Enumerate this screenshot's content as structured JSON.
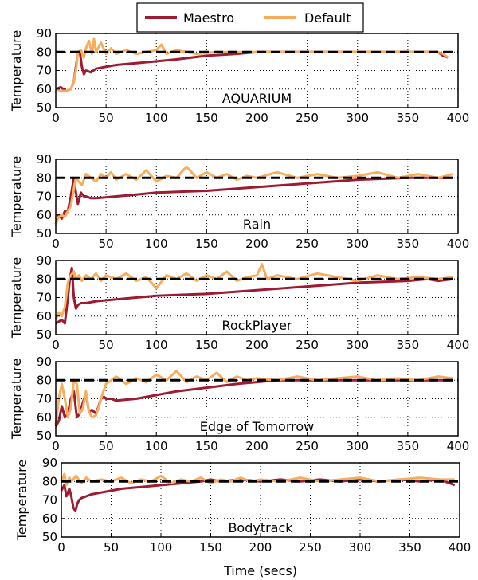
{
  "chart_data": {
    "type": "line",
    "legend": {
      "placement": "top-center",
      "entries": [
        {
          "name": "Maestro",
          "color": "#9e1b32"
        },
        {
          "name": "Default",
          "color": "#f7ad5c"
        }
      ]
    },
    "xlabel": "Time (secs)",
    "ylabel": "Temperature",
    "target_line": {
      "y": 80,
      "color": "#000000",
      "style": "dashed"
    },
    "grid": "dotted",
    "panels": [
      {
        "title": "AQUARIUM",
        "xlim": [
          0,
          400
        ],
        "ylim": [
          50,
          90
        ],
        "xticks": [
          0,
          50,
          100,
          150,
          200,
          250,
          300,
          350,
          400
        ],
        "yticks": [
          50,
          60,
          70,
          80,
          90
        ],
        "series": [
          {
            "name": "Maestro",
            "x": [
              0,
              5,
              10,
              15,
              18,
              20,
              22,
              24,
              26,
              28,
              30,
              35,
              40,
              50,
              60,
              80,
              100,
              120,
              150,
              180,
              200,
              250,
              300,
              350,
              380,
              385,
              390
            ],
            "y": [
              60,
              61,
              59,
              60,
              64,
              72,
              80,
              80,
              72,
              68,
              70,
              69,
              71,
              72,
              73,
              74,
              75,
              76,
              78,
              79,
              80,
              80,
              80,
              80,
              80,
              78,
              77
            ]
          },
          {
            "name": "Default",
            "x": [
              0,
              5,
              10,
              15,
              18,
              20,
              22,
              25,
              28,
              30,
              33,
              36,
              38,
              40,
              42,
              45,
              50,
              55,
              60,
              70,
              80,
              90,
              100,
              105,
              110,
              120,
              140,
              160,
              180,
              200,
              250,
              300,
              350,
              380,
              385,
              390
            ],
            "y": [
              60,
              59,
              59,
              60,
              64,
              70,
              80,
              81,
              77,
              82,
              86,
              79,
              87,
              80,
              82,
              85,
              79,
              82,
              79,
              81,
              79,
              80,
              81,
              84,
              79,
              81,
              79,
              80,
              80,
              80,
              80,
              80,
              80,
              80,
              79,
              77
            ]
          }
        ]
      },
      {
        "title": "Rain",
        "xlim": [
          0,
          400
        ],
        "ylim": [
          50,
          90
        ],
        "xticks": [
          0,
          50,
          100,
          150,
          200,
          250,
          300,
          350,
          400
        ],
        "yticks": [
          50,
          60,
          70,
          80,
          90
        ],
        "series": [
          {
            "name": "Maestro",
            "x": [
              0,
              3,
              6,
              9,
              12,
              15,
              18,
              20,
              22,
              25,
              28,
              30,
              35,
              40,
              60,
              80,
              100,
              150,
              200,
              250,
              300,
              350,
              380,
              395
            ],
            "y": [
              55,
              60,
              58,
              62,
              62,
              70,
              80,
              72,
              66,
              72,
              70,
              70,
              69,
              69,
              70,
              71,
              72,
              73,
              75,
              77,
              79,
              80,
              80,
              80
            ]
          },
          {
            "name": "Default",
            "x": [
              0,
              3,
              6,
              9,
              12,
              15,
              18,
              20,
              23,
              26,
              30,
              35,
              40,
              45,
              50,
              55,
              60,
              70,
              80,
              90,
              100,
              110,
              120,
              130,
              140,
              150,
              160,
              170,
              180,
              190,
              200,
              220,
              240,
              260,
              280,
              300,
              320,
              340,
              360,
              380,
              395
            ],
            "y": [
              55,
              59,
              60,
              59,
              62,
              65,
              74,
              80,
              78,
              76,
              82,
              80,
              78,
              82,
              80,
              83,
              79,
              82,
              79,
              84,
              78,
              81,
              80,
              86,
              80,
              83,
              80,
              82,
              79,
              81,
              80,
              83,
              80,
              82,
              80,
              81,
              83,
              80,
              82,
              80,
              82
            ]
          }
        ]
      },
      {
        "title": "RockPlayer",
        "xlim": [
          0,
          400
        ],
        "ylim": [
          50,
          90
        ],
        "xticks": [
          0,
          50,
          100,
          150,
          200,
          250,
          300,
          350,
          400
        ],
        "yticks": [
          50,
          60,
          70,
          80,
          90
        ],
        "series": [
          {
            "name": "Maestro",
            "x": [
              0,
              3,
              6,
              9,
              12,
              14,
              16,
              18,
              20,
              22,
              25,
              30,
              40,
              60,
              80,
              100,
              150,
              200,
              250,
              300,
              350,
              370,
              380,
              395
            ],
            "y": [
              56,
              57,
              58,
              56,
              70,
              80,
              86,
              70,
              64,
              66,
              67,
              67,
              68,
              69,
              70,
              71,
              72,
              74,
              76,
              78,
              79,
              80,
              79,
              80
            ]
          },
          {
            "name": "Default",
            "x": [
              0,
              3,
              6,
              9,
              12,
              15,
              18,
              20,
              23,
              26,
              30,
              35,
              40,
              45,
              50,
              60,
              70,
              80,
              90,
              100,
              110,
              120,
              130,
              140,
              150,
              160,
              170,
              180,
              190,
              200,
              205,
              210,
              220,
              240,
              260,
              280,
              300,
              320,
              340,
              360,
              380,
              395
            ],
            "y": [
              58,
              62,
              60,
              65,
              78,
              82,
              84,
              80,
              82,
              79,
              82,
              80,
              83,
              79,
              82,
              80,
              83,
              79,
              81,
              75,
              82,
              80,
              83,
              79,
              82,
              80,
              84,
              79,
              81,
              82,
              88,
              80,
              82,
              80,
              83,
              81,
              79,
              82,
              80,
              81,
              80,
              81
            ]
          }
        ]
      },
      {
        "title": "Edge of Tomorrow",
        "xlim": [
          0,
          400
        ],
        "ylim": [
          50,
          90
        ],
        "xticks": [
          0,
          50,
          100,
          150,
          200,
          250,
          300,
          350,
          400
        ],
        "yticks": [
          50,
          60,
          70,
          80,
          90
        ],
        "series": [
          {
            "name": "Maestro",
            "x": [
              0,
              3,
              6,
              9,
              12,
              15,
              18,
              21,
              24,
              27,
              30,
              33,
              36,
              40,
              42,
              45,
              48,
              50,
              55,
              60,
              80,
              100,
              120,
              150,
              180,
              200,
              220,
              250,
              300,
              350,
              395
            ],
            "y": [
              55,
              58,
              66,
              60,
              62,
              70,
              74,
              60,
              62,
              68,
              73,
              63,
              64,
              62,
              65,
              70,
              71,
              70,
              70,
              69,
              70,
              72,
              74,
              76,
              78,
              79,
              80,
              80,
              80,
              80,
              80
            ]
          },
          {
            "name": "Default",
            "x": [
              0,
              3,
              6,
              9,
              12,
              15,
              18,
              21,
              24,
              27,
              30,
              33,
              36,
              40,
              43,
              46,
              50,
              55,
              60,
              70,
              80,
              90,
              100,
              110,
              120,
              130,
              140,
              150,
              160,
              170,
              180,
              190,
              200,
              220,
              240,
              260,
              280,
              300,
              320,
              340,
              360,
              380,
              395
            ],
            "y": [
              56,
              70,
              78,
              70,
              60,
              65,
              80,
              78,
              62,
              65,
              74,
              63,
              60,
              61,
              66,
              72,
              78,
              80,
              82,
              78,
              81,
              79,
              83,
              80,
              85,
              79,
              82,
              80,
              84,
              79,
              82,
              80,
              81,
              80,
              82,
              80,
              81,
              82,
              80,
              81,
              80,
              82,
              81
            ]
          }
        ]
      },
      {
        "title": "Bodytrack",
        "xlim": [
          0,
          400
        ],
        "ylim": [
          50,
          90
        ],
        "xticks": [
          0,
          50,
          100,
          150,
          200,
          250,
          300,
          350,
          400
        ],
        "yticks": [
          50,
          60,
          70,
          80,
          90
        ],
        "series": [
          {
            "name": "Maestro",
            "x": [
              0,
              3,
              5,
              8,
              10,
              12,
              14,
              16,
              18,
              20,
              25,
              30,
              40,
              50,
              60,
              80,
              100,
              120,
              140,
              150,
              160,
              180,
              200,
              220,
              240,
              260,
              280,
              300,
              320,
              340,
              360,
              380,
              395
            ],
            "y": [
              75,
              78,
              72,
              76,
              72,
              66,
              64,
              68,
              70,
              71,
              72,
              73,
              74,
              75,
              76,
              77,
              78,
              79,
              80,
              81,
              80,
              81,
              80,
              81,
              80,
              81,
              80,
              81,
              80,
              81,
              80,
              81,
              78
            ]
          },
          {
            "name": "Default",
            "x": [
              0,
              3,
              5,
              8,
              10,
              15,
              20,
              25,
              30,
              40,
              50,
              60,
              70,
              80,
              90,
              100,
              110,
              120,
              130,
              140,
              150,
              160,
              170,
              180,
              190,
              200,
              220,
              240,
              260,
              280,
              300,
              320,
              340,
              360,
              380,
              395
            ],
            "y": [
              80,
              84,
              78,
              82,
              80,
              83,
              79,
              82,
              80,
              81,
              80,
              82,
              79,
              81,
              80,
              83,
              79,
              81,
              80,
              82,
              79,
              81,
              80,
              82,
              80,
              81,
              80,
              82,
              80,
              81,
              82,
              80,
              81,
              82,
              81,
              81
            ]
          }
        ]
      }
    ]
  }
}
